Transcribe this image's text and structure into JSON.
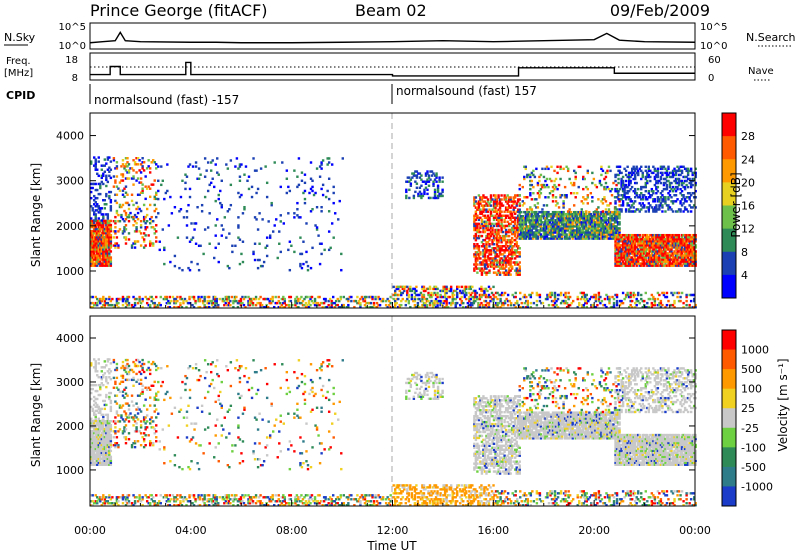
{
  "header": {
    "station": "Prince George (fitACF)",
    "beam": "Beam 02",
    "date": "09/Feb/2009"
  },
  "summary": {
    "nsky_label": "N.Sky",
    "nsky_ticks": [
      "10^5",
      "10^0"
    ],
    "nsearch_label": "N.Search",
    "nsearch_ticks": [
      "10^5",
      "10^0"
    ],
    "freq_label": "Freq.",
    "freq_unit": "[MHz]",
    "freq_ticks": [
      "18",
      "8"
    ],
    "nave_label": "Nave",
    "nave_ticks": [
      "60",
      "0"
    ],
    "cpid_label": "CPID",
    "cpid_segments": [
      {
        "label": "normalsound (fast) -157",
        "start_hour": 0,
        "end_hour": 12
      },
      {
        "label": "normalsound (fast) 157",
        "start_hour": 12,
        "end_hour": 24
      }
    ]
  },
  "power_panel": {
    "ylabel": "Slant Range [km]",
    "yticks": [
      "4000",
      "3000",
      "2000",
      "1000"
    ],
    "colorbar_label": "Power [dB]",
    "colorbar_ticks": [
      "28",
      "24",
      "20",
      "16",
      "12",
      "8",
      "4"
    ],
    "colors": [
      "#0000ff",
      "#1a40b4",
      "#2e8b57",
      "#6dc04a",
      "#e8d020",
      "#ff9900",
      "#ff5a00",
      "#ff0000"
    ]
  },
  "velocity_panel": {
    "ylabel": "Slant Range [km]",
    "yticks": [
      "4000",
      "3000",
      "2000",
      "1000"
    ],
    "colorbar_label": "Velocity [m s⁻¹]",
    "colorbar_ticks": [
      "1000",
      "500",
      "100",
      "25",
      "-25",
      "-100",
      "-500",
      "-1000"
    ],
    "colors": [
      "#1a3cc8",
      "#2e7b8a",
      "#2e8b57",
      "#6dd040",
      "#c8c8c8",
      "#f0d020",
      "#ff9900",
      "#ff5a00",
      "#ff0000"
    ]
  },
  "xaxis": {
    "label": "Time UT",
    "ticks": [
      "00:00",
      "04:00",
      "08:00",
      "12:00",
      "16:00",
      "20:00",
      "00:00"
    ]
  },
  "chart_data": [
    {
      "type": "line",
      "name": "N.Sky",
      "x_hours": [
        0,
        0.5,
        1,
        1.2,
        1.4,
        2,
        4,
        5,
        6,
        8,
        10,
        12,
        13,
        14,
        16,
        17,
        18,
        20,
        20.5,
        21,
        22,
        24
      ],
      "y_log10": [
        1.2,
        1.4,
        1.6,
        3.2,
        1.6,
        1.4,
        1.3,
        1.3,
        1.2,
        1.2,
        1.3,
        1.4,
        1.5,
        1.6,
        1.4,
        1.5,
        1.6,
        1.8,
        3.0,
        1.7,
        1.4,
        1.3
      ],
      "ylim_log10": [
        0,
        5
      ]
    },
    {
      "type": "line",
      "name": "Freq",
      "x_hours": [
        0,
        0.8,
        0.8,
        1.2,
        1.2,
        3.8,
        3.8,
        4.0,
        4.0,
        12,
        12,
        17,
        17,
        20.8,
        20.8,
        24
      ],
      "y": [
        10,
        10,
        13,
        13,
        10,
        10,
        14.5,
        14.5,
        10,
        10,
        9.5,
        9.5,
        12.5,
        12.5,
        10.5,
        10.5
      ],
      "ylim": [
        8,
        18
      ]
    },
    {
      "type": "heatmap",
      "name": "Power",
      "x_range_hours": [
        0,
        24
      ],
      "y_range_km": [
        180,
        4500
      ],
      "clim_db": [
        0,
        32
      ]
    },
    {
      "type": "heatmap",
      "name": "Velocity",
      "x_range_hours": [
        0,
        24
      ],
      "y_range_km": [
        180,
        4500
      ],
      "clim_ms": [
        -1200,
        1200
      ]
    }
  ]
}
